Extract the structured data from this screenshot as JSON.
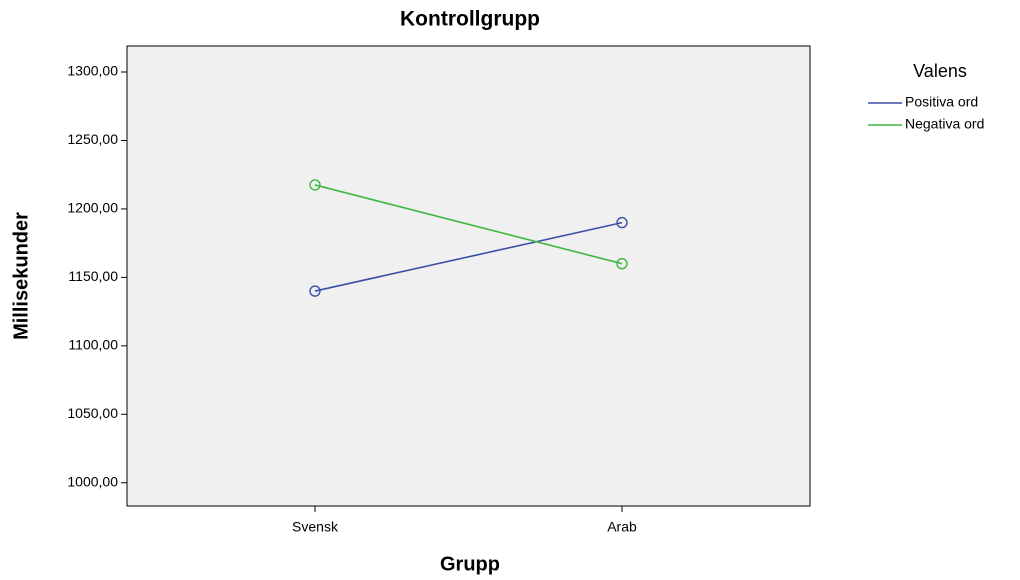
{
  "chart_data": {
    "type": "line",
    "title": "Kontrollgrupp",
    "x_label": "Grupp",
    "y_label": "Millisekunder",
    "categories": [
      "Svensk",
      "Arab"
    ],
    "series": [
      {
        "name": "Positiva ord",
        "color": "#3b4fa6",
        "values": [
          1140,
          1190
        ]
      },
      {
        "name": "Negativa ord",
        "color": "#3fb83f",
        "values": [
          1217.5,
          1160
        ]
      }
    ],
    "legend_title": "Valens",
    "ylim": [
      983,
      1319
    ],
    "yticks": [
      {
        "value": 1000,
        "label": "1000,00"
      },
      {
        "value": 1050,
        "label": "1050,00"
      },
      {
        "value": 1100,
        "label": "1100,00"
      },
      {
        "value": 1150,
        "label": "1150,00"
      },
      {
        "value": 1200,
        "label": "1200,00"
      },
      {
        "value": 1250,
        "label": "1250,00"
      },
      {
        "value": 1300,
        "label": "1300,00"
      }
    ],
    "legend": "right"
  }
}
